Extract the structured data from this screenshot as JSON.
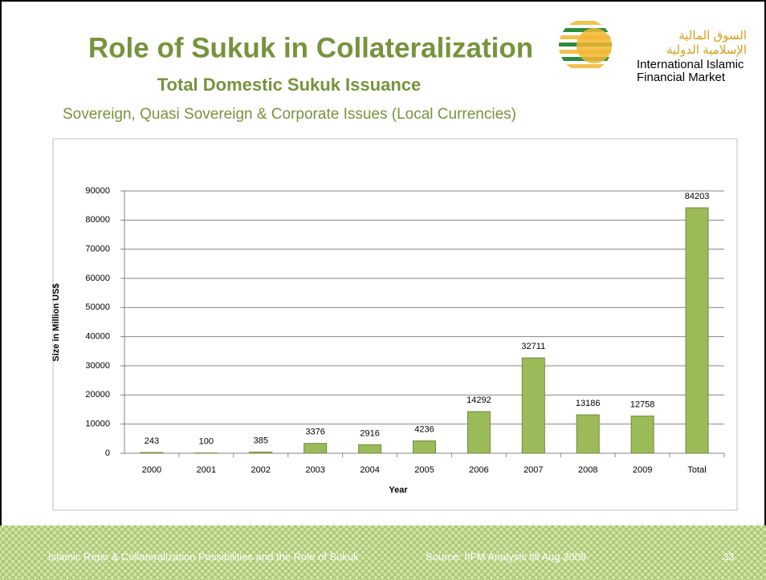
{
  "slide": {
    "title": "Role of Sukuk in Collateralization",
    "subtitle": "Total Domestic Sukuk Issuance",
    "caption": "Sovereign, Quasi Sovereign & Corporate Issues (Local Currencies)",
    "logo": {
      "arabic_line1": "السوق المالية",
      "arabic_line2": "الإسلامية الدولية",
      "english_line1": "International Islamic",
      "english_line2": "Financial Market"
    },
    "footer": {
      "left": "Islamic Repo & Collateralization Possibilities and the Role of Sukuk",
      "source": "Source: IIFM Analysis till Aug 2009",
      "page": "33"
    }
  },
  "chart_data": {
    "type": "bar",
    "categories": [
      "2000",
      "2001",
      "2002",
      "2003",
      "2004",
      "2005",
      "2006",
      "2007",
      "2008",
      "2009",
      "Total"
    ],
    "values": [
      243,
      100,
      385,
      3376,
      2916,
      4236,
      14292,
      32711,
      13186,
      12758,
      84203
    ],
    "color": "#9bbb59",
    "ylim": [
      0,
      90000
    ],
    "yticks": [
      0,
      10000,
      20000,
      30000,
      40000,
      50000,
      60000,
      70000,
      80000,
      90000
    ],
    "y_label": "Size in Million US$",
    "x_label": "Year",
    "grid": true
  }
}
